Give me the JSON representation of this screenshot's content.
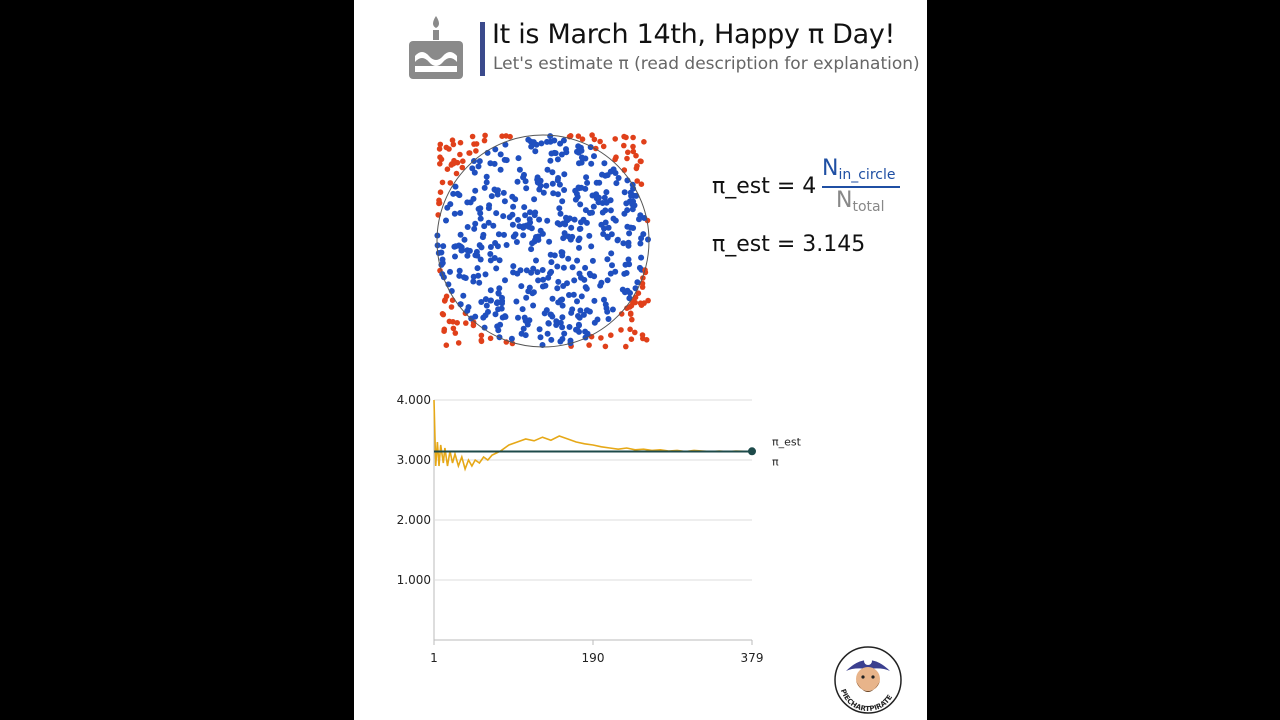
{
  "header": {
    "title": "It is March 14th, Happy π Day!",
    "subtitle": "Let's estimate π (read description for explanation)",
    "cake_icon": "birthday-cake-icon"
  },
  "formula": {
    "lhs": "π_est = 4",
    "numerator": "N",
    "numerator_sub": "in_circle",
    "denominator": "N",
    "denominator_sub": "total"
  },
  "estimate_text": "π_est = 3.145",
  "colors": {
    "inside": "#1f4fbf",
    "outside": "#e0401a",
    "estimate_line": "#e6a817",
    "pi_line": "#1d4a4a",
    "title_bar": "#3b4a8c"
  },
  "chart_data": [
    {
      "type": "scatter",
      "description": "Monte Carlo sampling: random points in a square, blue inside inscribed circle, red outside",
      "series": [
        {
          "name": "inside",
          "color": "#1f4fbf"
        },
        {
          "name": "outside",
          "color": "#e0401a"
        }
      ],
      "xlim": [
        -1,
        1
      ],
      "ylim": [
        -1,
        1
      ]
    },
    {
      "type": "line",
      "x_ticks": [
        "1",
        "190",
        "379"
      ],
      "xlim": [
        1,
        379
      ],
      "y_ticks": [
        "1.000",
        "2.000",
        "3.000",
        "4.000"
      ],
      "ylim": [
        0,
        4
      ],
      "grid": true,
      "series": [
        {
          "name": "π_est",
          "color": "#e6a817",
          "points": [
            [
              1,
              4.0
            ],
            [
              3,
              2.9
            ],
            [
              5,
              3.3
            ],
            [
              7,
              2.9
            ],
            [
              9,
              3.25
            ],
            [
              12,
              2.95
            ],
            [
              14,
              3.2
            ],
            [
              17,
              2.9
            ],
            [
              20,
              3.15
            ],
            [
              23,
              2.95
            ],
            [
              26,
              3.1
            ],
            [
              30,
              2.9
            ],
            [
              34,
              3.05
            ],
            [
              38,
              2.85
            ],
            [
              42,
              3.0
            ],
            [
              46,
              2.9
            ],
            [
              50,
              3.0
            ],
            [
              55,
              2.95
            ],
            [
              60,
              3.05
            ],
            [
              65,
              3.0
            ],
            [
              70,
              3.08
            ],
            [
              80,
              3.15
            ],
            [
              90,
              3.25
            ],
            [
              100,
              3.3
            ],
            [
              110,
              3.35
            ],
            [
              120,
              3.32
            ],
            [
              130,
              3.38
            ],
            [
              140,
              3.33
            ],
            [
              150,
              3.4
            ],
            [
              160,
              3.35
            ],
            [
              170,
              3.3
            ],
            [
              180,
              3.27
            ],
            [
              190,
              3.25
            ],
            [
              200,
              3.22
            ],
            [
              210,
              3.2
            ],
            [
              220,
              3.18
            ],
            [
              230,
              3.2
            ],
            [
              240,
              3.17
            ],
            [
              250,
              3.18
            ],
            [
              260,
              3.16
            ],
            [
              270,
              3.17
            ],
            [
              280,
              3.15
            ],
            [
              290,
              3.16
            ],
            [
              300,
              3.14
            ],
            [
              310,
              3.16
            ],
            [
              320,
              3.15
            ],
            [
              330,
              3.14
            ],
            [
              340,
              3.15
            ],
            [
              350,
              3.14
            ],
            [
              360,
              3.15
            ],
            [
              370,
              3.145
            ],
            [
              379,
              3.145
            ]
          ]
        },
        {
          "name": "π",
          "color": "#1d4a4a",
          "value": 3.14159
        }
      ]
    }
  ],
  "labels": {
    "pi_est_label": "π_est",
    "pi_label": "π"
  },
  "logo": {
    "text": "PIECHARTPIRATE",
    "icon": "pirate-avatar-icon"
  }
}
